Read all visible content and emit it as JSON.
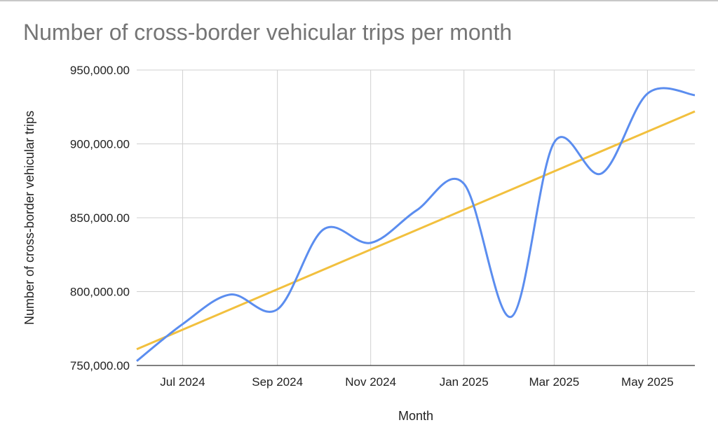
{
  "chart_data": {
    "type": "line",
    "title": "Number of cross-border vehicular trips per month",
    "xlabel": "Month",
    "ylabel": "Number of cross-border vehicular trips",
    "ylim": [
      750000,
      950000
    ],
    "y_ticks": [
      750000,
      800000,
      850000,
      900000,
      950000
    ],
    "y_tick_labels": [
      "750,000.00",
      "800,000.00",
      "850,000.00",
      "900,000.00",
      "950,000.00"
    ],
    "x_range": [
      "2024-06-01",
      "2025-06-01"
    ],
    "x_ticks": [
      "2024-07-01",
      "2024-09-01",
      "2024-11-01",
      "2025-01-01",
      "2025-03-01",
      "2025-05-01"
    ],
    "x_tick_labels": [
      "Jul 2024",
      "Sep 2024",
      "Nov 2024",
      "Jan 2025",
      "Mar 2025",
      "May 2025"
    ],
    "grid": true,
    "series": [
      {
        "color": "#5b8def",
        "x": [
          "2024-06-01",
          "2024-07-01",
          "2024-08-01",
          "2024-09-01",
          "2024-10-01",
          "2024-11-01",
          "2024-12-01",
          "2025-01-01",
          "2025-02-01",
          "2025-03-01",
          "2025-04-01",
          "2025-05-01",
          "2025-06-01"
        ],
        "values": [
          753000,
          778000,
          798000,
          788000,
          842000,
          833000,
          855000,
          873000,
          783000,
          901000,
          880000,
          934000,
          933000
        ]
      }
    ],
    "trendline": {
      "color": "#f2c03e",
      "x": [
        "2024-06-01",
        "2025-06-01"
      ],
      "values": [
        761000,
        922000
      ]
    }
  }
}
